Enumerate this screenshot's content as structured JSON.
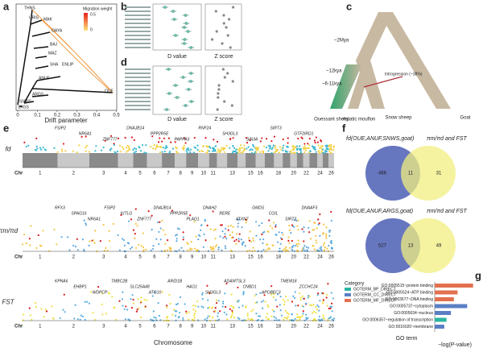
{
  "figure": {
    "a": {
      "label": "a",
      "populations": [
        "THNS",
        "URIS",
        "MAK",
        "OAYA",
        "BAJ",
        "MAZ",
        "SHA",
        "ENLIP",
        "OUE",
        "ANUF",
        "ARGS",
        "SNWS",
        "SKGS"
      ],
      "legend_title": "Migration weight",
      "legend_max": "0.5",
      "legend_min": "0",
      "xticks": [
        "0",
        "0.1",
        "0.2",
        "0.3",
        "0.4",
        "0.5"
      ],
      "xlabel": "Drift parameter"
    },
    "b": {
      "label": "b",
      "xlabel_left": "D value",
      "xlabel_right": "Z score"
    },
    "c": {
      "label": "c",
      "times": [
        "~2Mya",
        "~12kya",
        "~6-11kya"
      ],
      "introgression": "Introgression (~38%)",
      "species": [
        "Ouessant sheep",
        "Asiatic mouflon",
        "Snow sheep",
        "Goat"
      ]
    },
    "d": {
      "label": "d",
      "xlabel_left": "D value",
      "xlabel_right": "Z score"
    },
    "e": {
      "label": "e",
      "chr_label": "Chr",
      "xlabel": "Chromosome",
      "chromosomes": [
        "1",
        "2",
        "3",
        "4",
        "5",
        "6",
        "7",
        "8",
        "9",
        "10",
        "11",
        "13",
        "15",
        "16",
        "18",
        "20",
        "22",
        "24",
        "26"
      ],
      "rows": [
        {
          "ylabel": "fd",
          "genes": [
            "FSIP2",
            "NR6A1",
            "ZNF777",
            "DNAJB14",
            "PPP2R5E",
            "PAPPA3",
            "RNF24",
            "SH3GL3",
            "SIN3A",
            "SIRT3",
            "GTF2IRD1"
          ]
        },
        {
          "ylabel": "πm/πd",
          "genes": [
            "RFX3",
            "SPAG16",
            "NR6A1",
            "FSIP2",
            "KITLG",
            "ZNF777",
            "DNAJB14",
            "PPP2R5E",
            "PLAG1",
            "DNAH2",
            "RERE",
            "ATXN7",
            "GMDS",
            "COIL",
            "SIRT3",
            "DNAAF3"
          ]
        },
        {
          "ylabel": "FST",
          "genes": [
            "KPNA6",
            "EHBP1",
            "WDPCP",
            "TMBC2B",
            "SLC25A48",
            "ATG10",
            "ARID1B",
            "HAO1",
            "SH3GL3",
            "ADAMTSL3",
            "CNBD1",
            "APOBEC3",
            "TMEM18",
            "ZCCHC24"
          ]
        }
      ]
    },
    "f": {
      "label": "f",
      "venns": [
        {
          "title": "fd(OUE,ANUF,SNWS,goat)",
          "title_right": "πm/πd and FST",
          "left": "466",
          "overlap": "11",
          "right": "31"
        },
        {
          "title": "fd(OUE,ANUF,ARGS,goat)",
          "title_right": "πm/πd and FST",
          "left": "527",
          "overlap": "13",
          "right": "49"
        }
      ]
    },
    "g": {
      "label": "g",
      "legend_title": "Category",
      "categories": [
        {
          "name": "GOTERM_BP_DIRECT",
          "color": "#2bb5a0"
        },
        {
          "name": "GOTERM_CC_DIRECT",
          "color": "#5a7fc4"
        },
        {
          "name": "GOTERM_MF_DIRECT",
          "color": "#e2704f"
        }
      ],
      "terms": [
        "GO:0005515~protein binding",
        "GO:0005524~ATP binding",
        "GO:0003677~DNA binding",
        "GO:0005737~cytoplasm",
        "GO:0005634~nucleus",
        "GO:0006357~regulation of transcription",
        "GO:0016020~membrane"
      ],
      "term_category": [
        2,
        2,
        2,
        1,
        1,
        0,
        1
      ],
      "values": [
        5.2,
        3.1,
        2.6,
        4.4,
        2.2,
        1.6,
        1.3
      ],
      "xlabel": "GO term",
      "ylabel": "−log(P-value)"
    }
  }
}
